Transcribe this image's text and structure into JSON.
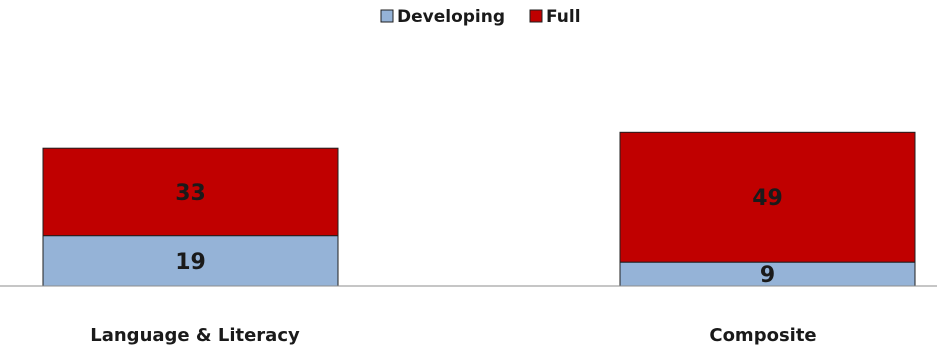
{
  "chart_data": {
    "type": "bar",
    "stacked": true,
    "categories": [
      "Language & Literacy",
      "Composite"
    ],
    "series": [
      {
        "name": "Developing",
        "values": [
          19,
          9
        ],
        "color": "#95b3d7"
      },
      {
        "name": "Full",
        "values": [
          33,
          49
        ],
        "color": "#c00000"
      }
    ],
    "legend": {
      "position": "top",
      "items": [
        "Developing",
        "Full"
      ]
    },
    "ylim": [
      0,
      58
    ],
    "grid": false,
    "title": "",
    "xlabel": "",
    "ylabel": ""
  }
}
